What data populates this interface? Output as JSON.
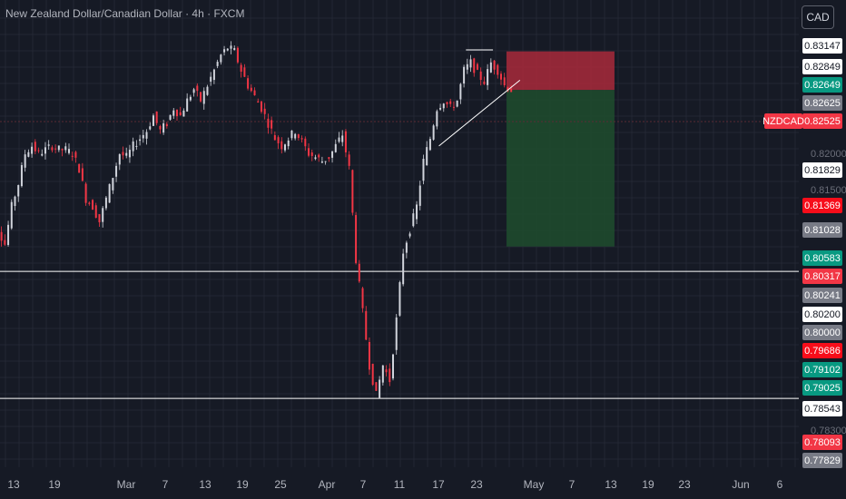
{
  "header": {
    "title": "New Zealand Dollar/Canadian Dollar · 4h · FXCM",
    "currency": "CAD"
  },
  "colors": {
    "background": "#161a25",
    "grid": "#232734",
    "bull": "#d1d4dc",
    "bear": "#f23645",
    "stop_zone": "#b22a3c",
    "target_zone": "#1f4d2e",
    "line": "#ffffff"
  },
  "chart_data": {
    "type": "candlestick",
    "symbol": "NZDCAD",
    "interval": "4h",
    "source": "FXCM",
    "x_ticks": [
      "13",
      "19",
      "Mar",
      "7",
      "13",
      "19",
      "25",
      "Apr",
      "7",
      "11",
      "17",
      "23",
      "May",
      "7",
      "13",
      "19",
      "23",
      "Jun",
      "6"
    ],
    "y_range": [
      0.7765,
      0.8335
    ],
    "visible_axis_labels": [
      "0.82000",
      "0.81500",
      "0.78300"
    ],
    "price_badges": [
      {
        "value": "0.83147",
        "bg": "#ffffff",
        "fg": "#131722"
      },
      {
        "value": "0.82849",
        "bg": "#ffffff",
        "fg": "#131722"
      },
      {
        "value": "0.82649",
        "bg": "#089981",
        "fg": "#ffffff"
      },
      {
        "value": "0.82625",
        "bg": "#787b86",
        "fg": "#ffffff"
      },
      {
        "value": "0.82525",
        "bg": "#f23645",
        "fg": "#ffffff"
      },
      {
        "value": "0.81829",
        "bg": "#ffffff",
        "fg": "#131722"
      },
      {
        "value": "0.81369",
        "bg": "#f70d1a",
        "fg": "#ffffff"
      },
      {
        "value": "0.81028",
        "bg": "#787b86",
        "fg": "#ffffff"
      },
      {
        "value": "0.80583",
        "bg": "#089981",
        "fg": "#ffffff"
      },
      {
        "value": "0.80317",
        "bg": "#f23645",
        "fg": "#ffffff"
      },
      {
        "value": "0.80241",
        "bg": "#787b86",
        "fg": "#ffffff"
      },
      {
        "value": "0.80200",
        "bg": "#ffffff",
        "fg": "#131722"
      },
      {
        "value": "0.80000",
        "bg": "#787b86",
        "fg": "#ffffff"
      },
      {
        "value": "0.79686",
        "bg": "#f70d1a",
        "fg": "#ffffff"
      },
      {
        "value": "0.79102",
        "bg": "#089981",
        "fg": "#ffffff"
      },
      {
        "value": "0.79025",
        "bg": "#089981",
        "fg": "#ffffff"
      },
      {
        "value": "0.78543",
        "bg": "#ffffff",
        "fg": "#131722"
      },
      {
        "value": "0.78093",
        "bg": "#f23645",
        "fg": "#ffffff"
      },
      {
        "value": "0.77829",
        "bg": "#787b86",
        "fg": "#ffffff"
      }
    ],
    "current_price_tag": "NZDCAD",
    "horizontal_lines": [
      0.8024,
      0.7856
    ],
    "short_position": {
      "entry": 0.8264,
      "stop": 0.8315,
      "target": 0.8057,
      "start_date": "Apr 27",
      "end_date": "May 13"
    },
    "trend_line": {
      "from": [
        "Apr 17",
        0.819
      ],
      "to": [
        "Apr 29",
        0.8277
      ]
    },
    "high_marker": {
      "from": [
        "Apr 21",
        0.8317
      ],
      "to": [
        "Apr 25",
        0.8317
      ]
    },
    "price_path": [
      [
        "Feb 9",
        0.81
      ],
      [
        "Feb 11",
        0.808
      ],
      [
        "Feb 12",
        0.806
      ],
      [
        "Feb 13",
        0.811
      ],
      [
        "Feb 14",
        0.814
      ],
      [
        "Feb 15",
        0.818
      ],
      [
        "Feb 16",
        0.819
      ],
      [
        "Feb 17",
        0.818
      ],
      [
        "Feb 18",
        0.8185
      ],
      [
        "Feb 19",
        0.819
      ],
      [
        "Feb 20",
        0.8185
      ],
      [
        "Feb 21",
        0.8185
      ],
      [
        "Feb 22",
        0.818
      ],
      [
        "Feb 23",
        0.816
      ],
      [
        "Feb 24",
        0.812
      ],
      [
        "Feb 25",
        0.811
      ],
      [
        "Feb 26",
        0.809
      ],
      [
        "Feb 27",
        0.812
      ],
      [
        "Feb 28",
        0.815
      ],
      [
        "Mar 1",
        0.818
      ],
      [
        "Mar 2",
        0.8175
      ],
      [
        "Mar 3",
        0.819
      ],
      [
        "Mar 4",
        0.82
      ],
      [
        "Mar 5",
        0.821
      ],
      [
        "Mar 6",
        0.823
      ],
      [
        "Mar 7",
        0.821
      ],
      [
        "Mar 8",
        0.822
      ],
      [
        "Mar 9",
        0.824
      ],
      [
        "Mar 10",
        0.823
      ],
      [
        "Mar 11",
        0.825
      ],
      [
        "Mar 12",
        0.8265
      ],
      [
        "Mar 13",
        0.825
      ],
      [
        "Mar 14",
        0.827
      ],
      [
        "Mar 15",
        0.829
      ],
      [
        "Mar 16",
        0.831
      ],
      [
        "Mar 17",
        0.832
      ],
      [
        "Mar 18",
        0.8315
      ],
      [
        "Mar 19",
        0.829
      ],
      [
        "Mar 20",
        0.827
      ],
      [
        "Mar 21",
        0.8255
      ],
      [
        "Mar 22",
        0.824
      ],
      [
        "Mar 23",
        0.822
      ],
      [
        "Mar 24",
        0.82
      ],
      [
        "Mar 25",
        0.819
      ],
      [
        "Mar 26",
        0.82
      ],
      [
        "Mar 27",
        0.821
      ],
      [
        "Mar 28",
        0.8195
      ],
      [
        "Mar 29",
        0.818
      ],
      [
        "Mar 30",
        0.8175
      ],
      [
        "Mar 31",
        0.817
      ],
      [
        "Apr 1",
        0.8175
      ],
      [
        "Apr 2",
        0.819
      ],
      [
        "Apr 3",
        0.8205
      ],
      [
        "Apr 4",
        0.816
      ],
      [
        "Apr 5",
        0.804
      ],
      [
        "Apr 6",
        0.797
      ],
      [
        "Apr 7",
        0.79
      ],
      [
        "Apr 8",
        0.786
      ],
      [
        "Apr 9",
        0.79
      ],
      [
        "Apr 10",
        0.788
      ],
      [
        "Apr 11",
        0.796
      ],
      [
        "Apr 12",
        0.805
      ],
      [
        "Apr 13",
        0.808
      ],
      [
        "Apr 14",
        0.811
      ],
      [
        "Apr 15",
        0.817
      ],
      [
        "Apr 16",
        0.82
      ],
      [
        "Apr 17",
        0.824
      ],
      [
        "Apr 18",
        0.825
      ],
      [
        "Apr 19",
        0.824
      ],
      [
        "Apr 20",
        0.825
      ],
      [
        "Apr 21",
        0.829
      ],
      [
        "Apr 22",
        0.83
      ],
      [
        "Apr 23",
        0.8285
      ],
      [
        "Apr 24",
        0.8275
      ],
      [
        "Apr 25",
        0.83
      ],
      [
        "Apr 26",
        0.829
      ],
      [
        "Apr 27",
        0.827
      ],
      [
        "Apr 28",
        0.8264
      ]
    ]
  }
}
